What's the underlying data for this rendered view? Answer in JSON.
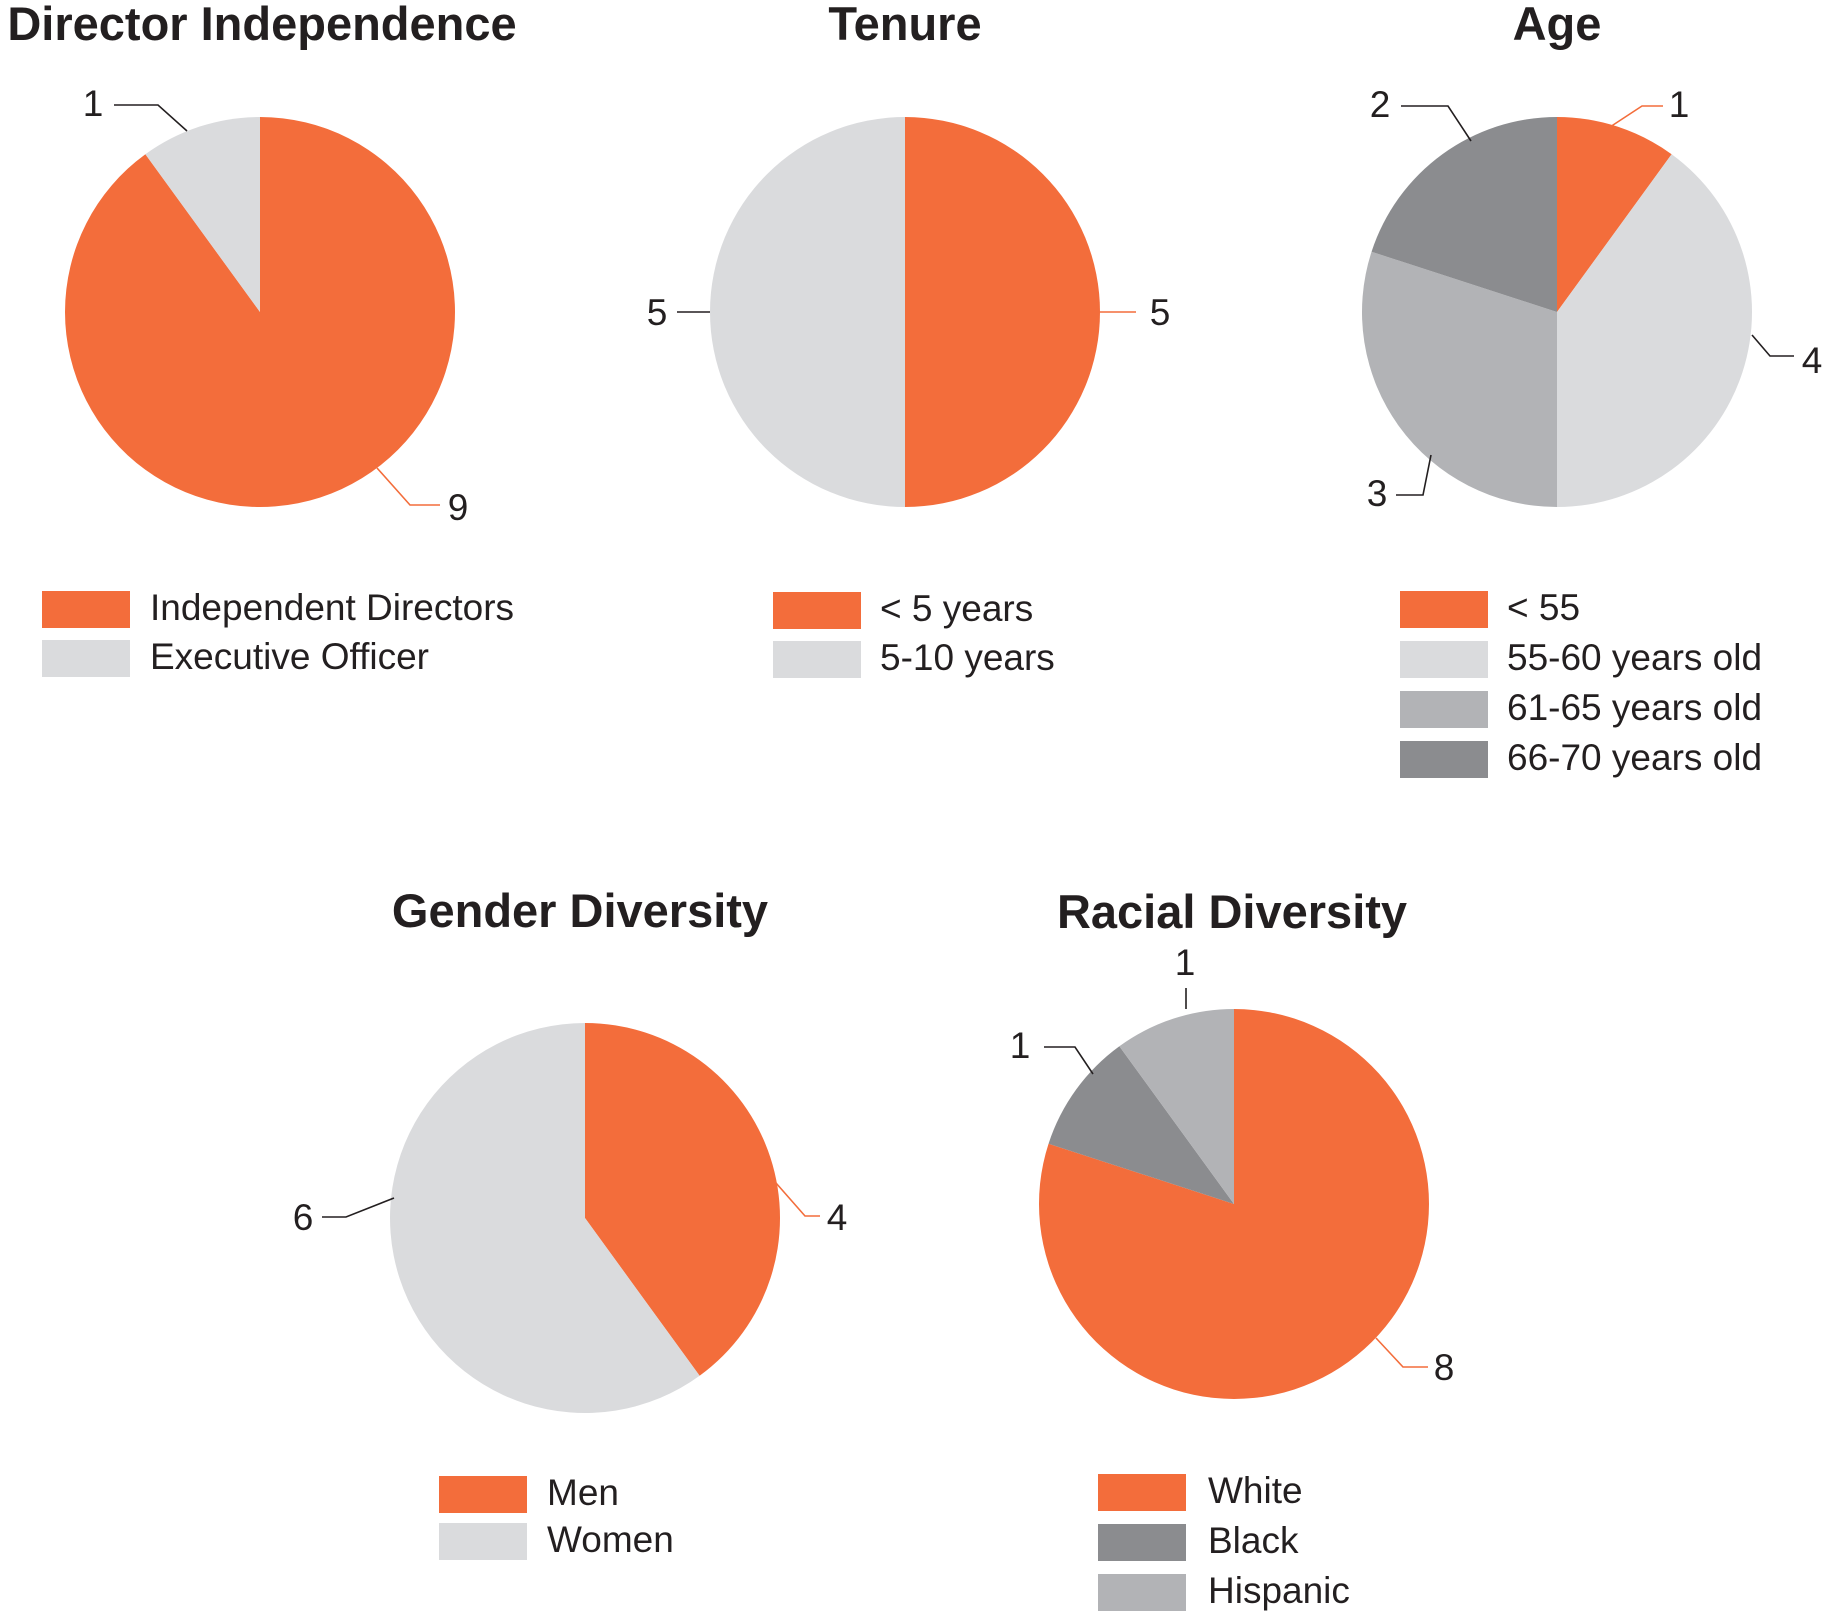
{
  "palette": {
    "orange": "#f36d3b",
    "light_gray": "#dadbdd",
    "mid_gray": "#b2b3b6",
    "dark_gray": "#8b8c8f",
    "leader_dark": "#231f20"
  },
  "chart_data": [
    {
      "type": "pie",
      "title": "Director Independence",
      "slices": [
        {
          "label": "Independent Directors",
          "value": 9,
          "color": "#f36d3b"
        },
        {
          "label": "Executive Officer",
          "value": 1,
          "color": "#dadbdd"
        }
      ],
      "legend_order": [
        "Independent Directors",
        "Executive Officer"
      ],
      "data_labels": [
        "9",
        "1"
      ]
    },
    {
      "type": "pie",
      "title": "Tenure",
      "slices": [
        {
          "label": "< 5 years",
          "value": 5,
          "color": "#f36d3b"
        },
        {
          "label": "5-10 years",
          "value": 5,
          "color": "#dadbdd"
        }
      ],
      "legend_order": [
        "< 5 years",
        "5-10 years"
      ],
      "data_labels": [
        "5",
        "5"
      ]
    },
    {
      "type": "pie",
      "title": "Age",
      "slices": [
        {
          "label": "< 55",
          "value": 1,
          "color": "#f36d3b"
        },
        {
          "label": "55-60 years old",
          "value": 4,
          "color": "#dadbdd"
        },
        {
          "label": "61-65 years old",
          "value": 3,
          "color": "#b2b3b6"
        },
        {
          "label": "66-70 years old",
          "value": 2,
          "color": "#8b8c8f"
        }
      ],
      "legend_order": [
        "< 55",
        "55-60 years old",
        "61-65 years old",
        "66-70 years old"
      ],
      "data_labels": [
        "1",
        "4",
        "3",
        "2"
      ]
    },
    {
      "type": "pie",
      "title": "Gender Diversity",
      "slices": [
        {
          "label": "Men",
          "value": 4,
          "color": "#f36d3b"
        },
        {
          "label": "Women",
          "value": 6,
          "color": "#dadbdd"
        }
      ],
      "legend_order": [
        "Men",
        "Women"
      ],
      "data_labels": [
        "4",
        "6"
      ]
    },
    {
      "type": "pie",
      "title": "Racial Diversity",
      "slices": [
        {
          "label": "White",
          "value": 8,
          "color": "#f36d3b"
        },
        {
          "label": "Black",
          "value": 1,
          "color": "#8b8c8f"
        },
        {
          "label": "Hispanic",
          "value": 1,
          "color": "#b2b3b6"
        }
      ],
      "legend_order": [
        "White",
        "Black",
        "Hispanic"
      ],
      "data_labels": [
        "8",
        "1",
        "1"
      ]
    }
  ]
}
